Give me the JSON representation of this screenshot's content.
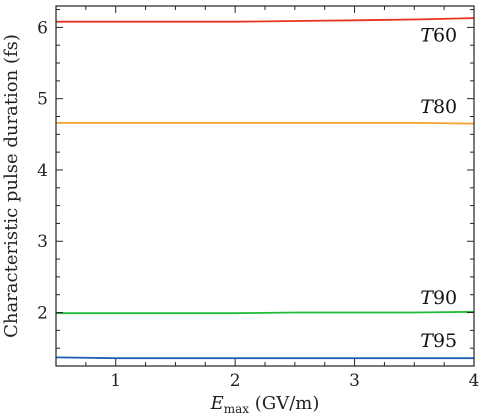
{
  "chart_data": {
    "type": "line",
    "xlabel_main": "E",
    "xlabel_sub": "max",
    "xlabel_unit": " (GV/m)",
    "ylabel": "Characteristic pulse duration (fs)",
    "xlim": [
      0.5,
      4.0
    ],
    "ylim": [
      1.25,
      6.3
    ],
    "xticks": [
      1,
      2,
      3,
      4
    ],
    "yticks": [
      2,
      3,
      4,
      5,
      6
    ],
    "grid": false,
    "x": [
      0.5,
      1.0,
      1.5,
      2.0,
      2.5,
      3.0,
      3.5,
      4.0
    ],
    "series": [
      {
        "label_prefix": "T",
        "label_num": "60",
        "color": "#e8351f",
        "label_x": 3.55,
        "label_y": 5.8,
        "values": [
          6.08,
          6.08,
          6.08,
          6.08,
          6.09,
          6.1,
          6.11,
          6.13
        ]
      },
      {
        "label_prefix": "T",
        "label_num": "80",
        "color": "#f2a22e",
        "label_x": 3.55,
        "label_y": 4.8,
        "values": [
          4.66,
          4.66,
          4.66,
          4.66,
          4.66,
          4.66,
          4.66,
          4.65
        ]
      },
      {
        "label_prefix": "T",
        "label_num": "90",
        "color": "#1fbc3a",
        "label_x": 3.55,
        "label_y": 2.12,
        "values": [
          1.99,
          1.99,
          1.99,
          1.99,
          2.0,
          2.0,
          2.0,
          2.01
        ]
      },
      {
        "label_prefix": "T",
        "label_num": "95",
        "color": "#1f5fb4",
        "label_x": 3.55,
        "label_y": 1.52,
        "values": [
          1.37,
          1.36,
          1.36,
          1.36,
          1.36,
          1.36,
          1.36,
          1.36
        ]
      }
    ]
  }
}
